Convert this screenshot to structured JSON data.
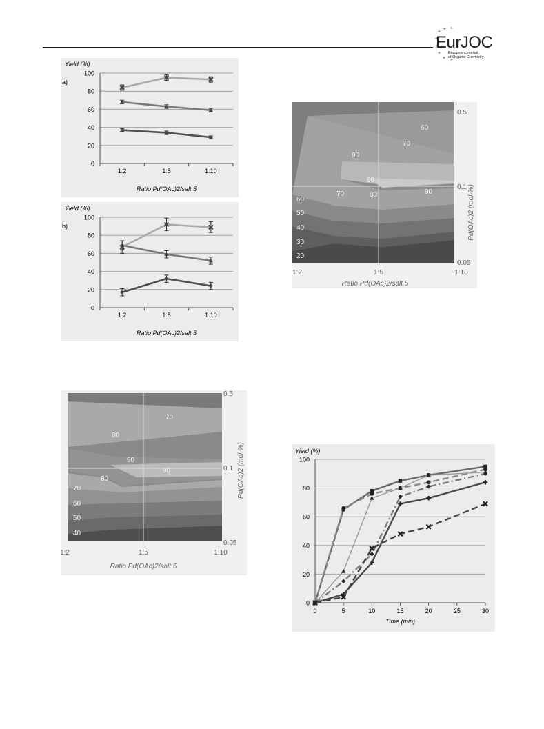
{
  "header": {
    "logo_main": "EurJOC",
    "logo_line1": "European Journal",
    "logo_line2": "of Organic Chemistry"
  },
  "colors": {
    "light": "#a9a9a9",
    "medium": "#7a7a7a",
    "dark": "#505050",
    "panel": "#ececec"
  },
  "chart_data": [
    {
      "id": "a",
      "type": "line",
      "panel_label": "a)",
      "ylabel": "Yield (%)",
      "xlabel": "Ratio Pd(OAc)2/salt 5",
      "categories": [
        "1:2",
        "1:5",
        "1:10"
      ],
      "ylim": [
        0,
        100
      ],
      "yticks": [
        0,
        20,
        40,
        60,
        80,
        100
      ],
      "series": [
        {
          "values": [
            84,
            95,
            93
          ],
          "errors": [
            3,
            3,
            3
          ],
          "marker": "x"
        },
        {
          "values": [
            68,
            63,
            59
          ],
          "errors": [
            2,
            2,
            2
          ],
          "marker": "triangle"
        },
        {
          "values": [
            37,
            34,
            29
          ],
          "errors": [
            1.5,
            2,
            1.5
          ],
          "marker": "diamond"
        }
      ]
    },
    {
      "id": "b",
      "type": "line",
      "panel_label": "b)",
      "ylabel": "Yield (%)",
      "xlabel": "Ratio Pd(OAc)2/salt 5",
      "categories": [
        "1:2",
        "1:5",
        "1:10"
      ],
      "ylim": [
        0,
        100
      ],
      "yticks": [
        0,
        20,
        40,
        60,
        80,
        100
      ],
      "series": [
        {
          "values": [
            67,
            92,
            89
          ],
          "errors": [
            7,
            7,
            6
          ],
          "marker": "x"
        },
        {
          "values": [
            69,
            59,
            52
          ],
          "errors": [
            5,
            4,
            4
          ],
          "marker": "triangle"
        },
        {
          "values": [
            17,
            32,
            24
          ],
          "errors": [
            4,
            4,
            4
          ],
          "marker": "diamond"
        }
      ]
    },
    {
      "id": "contour1",
      "type": "heatmap",
      "xlabel": "Ratio Pd(OAc)2/salt 5",
      "ylabel": "Pd(OAc)2 (mol-%)",
      "x_ticks": [
        "1:2",
        "1:5",
        "1:10"
      ],
      "y_ticks": [
        "0.5",
        "0.1",
        "0.05"
      ],
      "contour_labels": [
        "60",
        "70",
        "80",
        "90",
        "90",
        "90",
        "70",
        "80",
        "60",
        "50",
        "40",
        "30",
        "20"
      ]
    },
    {
      "id": "contour2",
      "type": "heatmap",
      "xlabel": "Ratio Pd(OAc)2/salt 5",
      "ylabel": "Pd(OAc)2 (mol-%)",
      "x_ticks": [
        "1:2",
        "1:5",
        "1:10"
      ],
      "y_ticks": [
        "0.5",
        "0.1",
        "0.05"
      ],
      "contour_labels": [
        "70",
        "80",
        "90",
        "90",
        "80",
        "70",
        "60",
        "50",
        "40"
      ]
    },
    {
      "id": "kinetics",
      "type": "line",
      "ylabel": "Yield (%)",
      "xlabel": "Time (min)",
      "x": [
        0,
        5,
        10,
        15,
        20,
        30
      ],
      "xticks": [
        0,
        5,
        10,
        15,
        20,
        25,
        30
      ],
      "ylim": [
        0,
        100
      ],
      "xlim": [
        0,
        30
      ],
      "yticks": [
        0,
        20,
        40,
        60,
        80,
        100
      ],
      "series": [
        {
          "values": [
            0,
            65,
            78,
            85,
            89,
            95
          ],
          "marker": "square",
          "dash": "solid",
          "color": "#6a6a6a"
        },
        {
          "values": [
            0,
            66,
            76,
            80,
            84,
            93
          ],
          "marker": "circle",
          "dash": "long",
          "color": "#8a8a8a"
        },
        {
          "values": [
            0,
            22,
            73,
            80,
            89,
            91
          ],
          "marker": "triangle",
          "dash": "solid",
          "color": "#9a9a9a"
        },
        {
          "values": [
            0,
            15,
            34,
            74,
            81,
            90
          ],
          "marker": "diamond",
          "dash": "dashdot",
          "color": "#7a7a7a"
        },
        {
          "values": [
            0,
            6,
            28,
            69,
            73,
            84
          ],
          "marker": "plus",
          "dash": "solid",
          "color": "#4a4a4a"
        },
        {
          "values": [
            0,
            4,
            38,
            48,
            53,
            69
          ],
          "marker": "x",
          "dash": "long",
          "color": "#444444"
        }
      ]
    }
  ]
}
